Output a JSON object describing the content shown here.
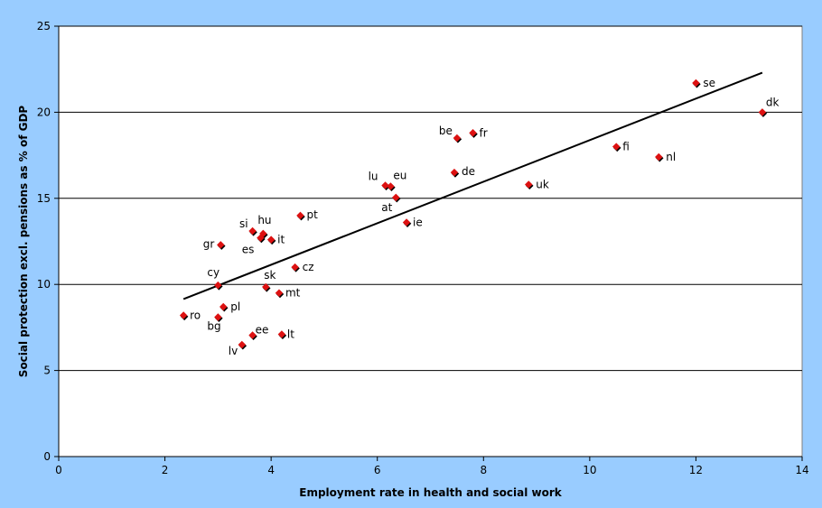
{
  "chart_data": {
    "type": "scatter",
    "xlabel": "Employment rate in health and social work",
    "ylabel": "Social protection excl. pensions as % of GDP",
    "xlim": [
      0,
      14
    ],
    "ylim": [
      0,
      25
    ],
    "x_ticks": [
      "0",
      "2",
      "4",
      "6",
      "8",
      "10",
      "12",
      "14"
    ],
    "y_ticks": [
      "0",
      "5",
      "10",
      "15",
      "20",
      "25"
    ],
    "grid": "horizontal",
    "points": [
      {
        "label": "se",
        "x": 12.0,
        "y": 21.7
      },
      {
        "label": "dk",
        "x": 13.25,
        "y": 20.0
      },
      {
        "label": "be",
        "x": 7.5,
        "y": 18.5
      },
      {
        "label": "fr",
        "x": 7.8,
        "y": 18.8
      },
      {
        "label": "fi",
        "x": 10.5,
        "y": 18.0
      },
      {
        "label": "nl",
        "x": 11.3,
        "y": 17.4
      },
      {
        "label": "de",
        "x": 7.45,
        "y": 16.5
      },
      {
        "label": "uk",
        "x": 8.85,
        "y": 15.8
      },
      {
        "label": "lu",
        "x": 6.15,
        "y": 15.75
      },
      {
        "label": "eu",
        "x": 6.25,
        "y": 15.7
      },
      {
        "label": "at",
        "x": 6.35,
        "y": 15.05
      },
      {
        "label": "pt",
        "x": 4.55,
        "y": 14.0
      },
      {
        "label": "ie",
        "x": 6.55,
        "y": 13.6
      },
      {
        "label": "si",
        "x": 3.65,
        "y": 13.1
      },
      {
        "label": "hu",
        "x": 3.85,
        "y": 12.95
      },
      {
        "label": "es",
        "x": 3.8,
        "y": 12.7
      },
      {
        "label": "it",
        "x": 4.0,
        "y": 12.6
      },
      {
        "label": "gr",
        "x": 3.05,
        "y": 12.3
      },
      {
        "label": "cz",
        "x": 4.45,
        "y": 11.0
      },
      {
        "label": "cy",
        "x": 3.0,
        "y": 9.95
      },
      {
        "label": "sk",
        "x": 3.9,
        "y": 9.85
      },
      {
        "label": "mt",
        "x": 4.15,
        "y": 9.5
      },
      {
        "label": "pl",
        "x": 3.1,
        "y": 8.7
      },
      {
        "label": "ro",
        "x": 2.35,
        "y": 8.2
      },
      {
        "label": "bg",
        "x": 3.0,
        "y": 8.1
      },
      {
        "label": "ee",
        "x": 3.65,
        "y": 7.05
      },
      {
        "label": "lt",
        "x": 4.2,
        "y": 7.1
      },
      {
        "label": "lv",
        "x": 3.45,
        "y": 6.5
      }
    ],
    "trendline": {
      "x": [
        2.35,
        13.25
      ],
      "y": [
        9.15,
        22.3
      ]
    },
    "colors": {
      "marker": "#dd1111",
      "marker_shadow": "#000000",
      "trendline": "#000000",
      "gridline": "#000000",
      "background": "#99ccff",
      "plot_area": "#ffffff"
    }
  }
}
